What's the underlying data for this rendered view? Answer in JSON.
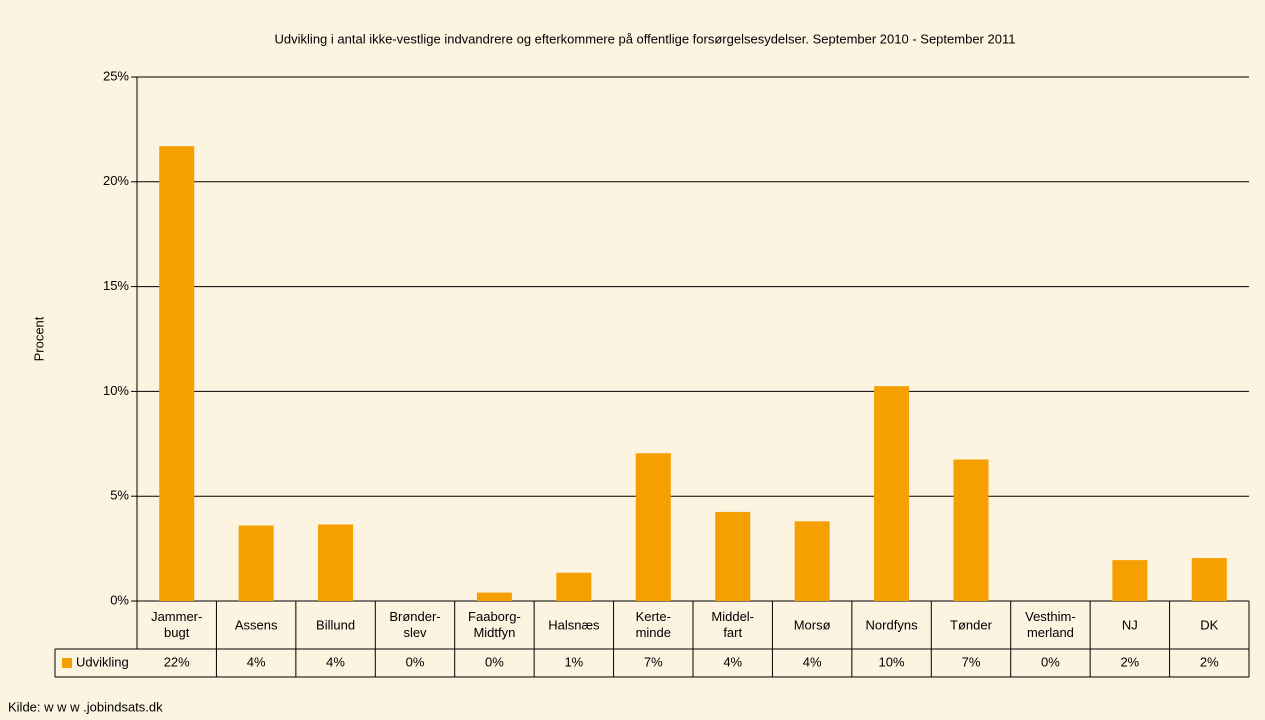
{
  "chart_data": {
    "type": "bar",
    "title": "Udvikling i antal ikke-vestlige indvandrere og efterkommere på offentlige forsørgelsesydelser. September 2010 - September 2011",
    "y_label": "Procent",
    "source": "Kilde: w w w .jobindsats.dk",
    "categories": [
      "Jammer-\nbugt",
      "Assens",
      "Billund",
      "Brønder-\nslev",
      "Faaborg-\nMidtfyn",
      "Halsnæs",
      "Kerte-\nminde",
      "Middel-\nfart",
      "Morsø",
      "Nordfyns",
      "Tønder",
      "Vesthim-\nmerland",
      "NJ",
      "DK"
    ],
    "series": [
      {
        "name": "Udvikling",
        "color": "#f5a000",
        "values": [
          21.7,
          3.6,
          3.65,
          0,
          0.4,
          1.35,
          7.05,
          4.25,
          3.8,
          10.25,
          6.75,
          0,
          1.95,
          2.05
        ],
        "value_labels": [
          "22%",
          "4%",
          "4%",
          "0%",
          "0%",
          "1%",
          "7%",
          "4%",
          "4%",
          "10%",
          "7%",
          "0%",
          "2%",
          "2%"
        ]
      }
    ],
    "ylim": [
      0,
      25
    ],
    "yticks": [
      {
        "value": 0,
        "label": "0%"
      },
      {
        "value": 5,
        "label": "5%"
      },
      {
        "value": 10,
        "label": "10%"
      },
      {
        "value": 15,
        "label": "15%"
      },
      {
        "value": 20,
        "label": "20%"
      },
      {
        "value": 25,
        "label": "25%"
      }
    ],
    "grid": true
  }
}
